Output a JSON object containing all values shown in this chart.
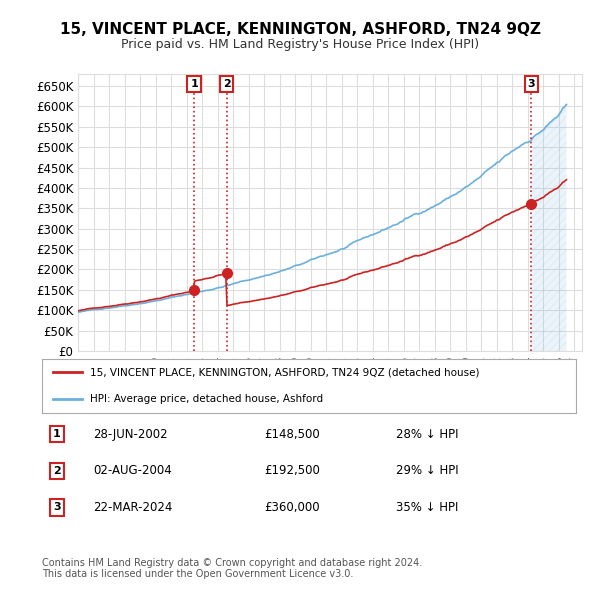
{
  "title": "15, VINCENT PLACE, KENNINGTON, ASHFORD, TN24 9QZ",
  "subtitle": "Price paid vs. HM Land Registry's House Price Index (HPI)",
  "ylabel_ticks": [
    "£0",
    "£50K",
    "£100K",
    "£150K",
    "£200K",
    "£250K",
    "£300K",
    "£350K",
    "£400K",
    "£450K",
    "£500K",
    "£550K",
    "£600K",
    "£650K"
  ],
  "ytick_values": [
    0,
    50000,
    100000,
    150000,
    200000,
    250000,
    300000,
    350000,
    400000,
    450000,
    500000,
    550000,
    600000,
    650000
  ],
  "ylim": [
    0,
    680000
  ],
  "xlim_start": 1995.0,
  "xlim_end": 2027.5,
  "transactions": [
    {
      "date": 2002.49,
      "price": 148500,
      "label": "1"
    },
    {
      "date": 2004.59,
      "price": 192500,
      "label": "2"
    },
    {
      "date": 2024.22,
      "price": 360000,
      "label": "3"
    }
  ],
  "transaction_info": [
    {
      "num": "1",
      "date": "28-JUN-2002",
      "price": "£148,500",
      "hpi": "28% ↓ HPI"
    },
    {
      "num": "2",
      "date": "02-AUG-2004",
      "price": "£192,500",
      "hpi": "29% ↓ HPI"
    },
    {
      "num": "3",
      "date": "22-MAR-2024",
      "price": "£360,000",
      "hpi": "35% ↓ HPI"
    }
  ],
  "hpi_color": "#6ab0de",
  "price_color": "#cc2222",
  "vline_color": "#cc2222",
  "hatch_color": "#aaaadd",
  "legend_labels": [
    "15, VINCENT PLACE, KENNINGTON, ASHFORD, TN24 9QZ (detached house)",
    "HPI: Average price, detached house, Ashford"
  ],
  "footnote": "Contains HM Land Registry data © Crown copyright and database right 2024.\nThis data is licensed under the Open Government Licence v3.0.",
  "background_color": "#ffffff",
  "grid_color": "#dddddd",
  "xtick_years": [
    1995,
    1996,
    1997,
    1998,
    1999,
    2000,
    2001,
    2002,
    2003,
    2004,
    2005,
    2006,
    2007,
    2008,
    2009,
    2010,
    2011,
    2012,
    2013,
    2014,
    2015,
    2016,
    2017,
    2018,
    2019,
    2020,
    2021,
    2022,
    2023,
    2024,
    2025,
    2026,
    2027
  ]
}
